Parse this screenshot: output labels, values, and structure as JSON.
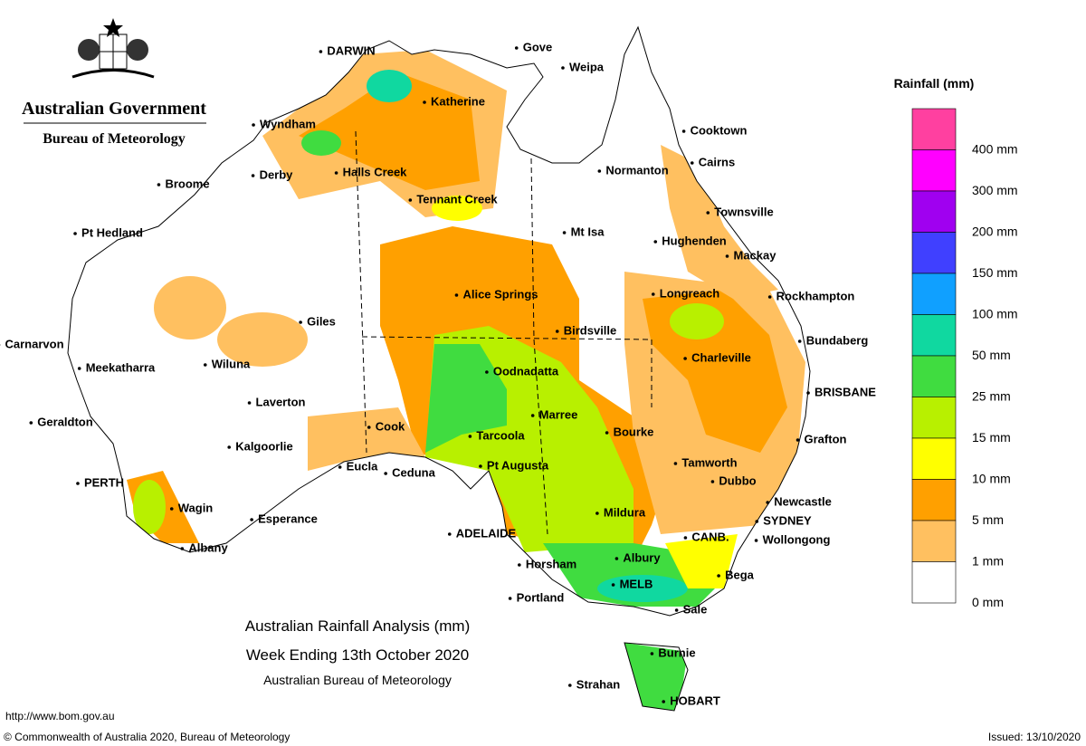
{
  "header": {
    "agency": "Australian Government",
    "bureau": "Bureau of Meteorology"
  },
  "title": {
    "line1": "Australian Rainfall Analysis (mm)",
    "line2": "Week Ending 13th October 2020",
    "line3": "Australian Bureau of Meteorology"
  },
  "legend": {
    "title": "Rainfall (mm)",
    "bands": [
      {
        "color": "#ff40a0",
        "label": "400 mm"
      },
      {
        "color": "#ff00ff",
        "label": "300 mm"
      },
      {
        "color": "#a000f0",
        "label": "200 mm"
      },
      {
        "color": "#4040ff",
        "label": "150 mm"
      },
      {
        "color": "#10a0ff",
        "label": "100 mm"
      },
      {
        "color": "#10d8a0",
        "label": "50 mm"
      },
      {
        "color": "#40dc40",
        "label": "25 mm"
      },
      {
        "color": "#b8f000",
        "label": "15 mm"
      },
      {
        "color": "#ffff00",
        "label": "10 mm"
      },
      {
        "color": "#ffa000",
        "label": "5 mm"
      },
      {
        "color": "#ffc060",
        "label": "1 mm"
      },
      {
        "color": "#ffffff",
        "label": "0 mm"
      }
    ]
  },
  "places": [
    "DARWIN",
    "Gove",
    "Weipa",
    "Katherine",
    "Wyndham",
    "Cooktown",
    "Broome",
    "Derby",
    "Halls Creek",
    "Normanton",
    "Cairns",
    "Tennant Creek",
    "Townsville",
    "Pt Hedland",
    "Mt Isa",
    "Hughenden",
    "Mackay",
    "Alice Springs",
    "Longreach",
    "Rockhampton",
    "Giles",
    "Birdsville",
    "Carnarvon",
    "Bundaberg",
    "Meekatharra",
    "Wiluna",
    "Oodnadatta",
    "Charleville",
    "BRISBANE",
    "Laverton",
    "Geraldton",
    "Cook",
    "Marree",
    "Bourke",
    "Grafton",
    "Tarcoola",
    "Kalgoorlie",
    "Eucla",
    "Ceduna",
    "Pt Augusta",
    "Tamworth",
    "Dubbo",
    "PERTH",
    "Newcastle",
    "Wagin",
    "Mildura",
    "SYDNEY",
    "Esperance",
    "ADELAIDE",
    "CANB.",
    "Wollongong",
    "Albany",
    "Horsham",
    "Albury",
    "Bega",
    "MELB",
    "Portland",
    "Sale",
    "Burnie",
    "Strahan",
    "HOBART"
  ],
  "footer": {
    "url": "http://www.bom.gov.au",
    "copyright": "© Commonwealth of Australia 2020, Bureau of Meteorology",
    "issued": "Issued: 13/10/2020"
  }
}
